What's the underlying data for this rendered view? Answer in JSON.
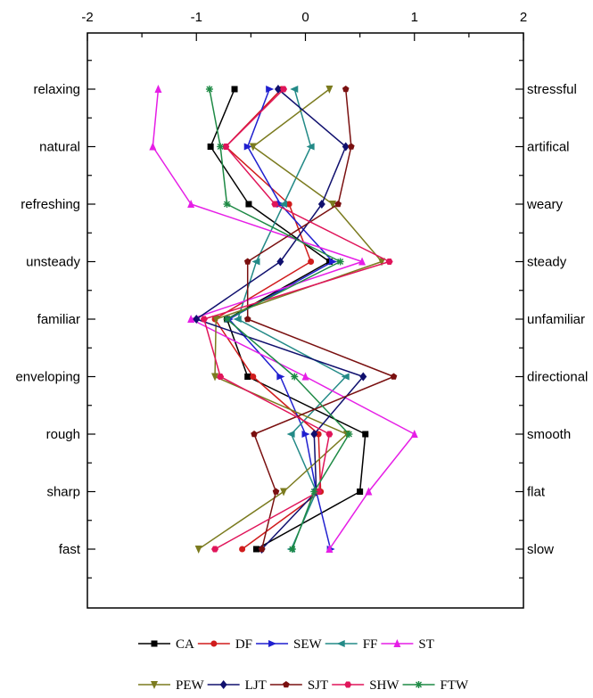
{
  "chart_data": {
    "type": "line",
    "xlim": [
      -2,
      2
    ],
    "x_ticks": [
      "-2",
      "-1",
      "0",
      "1",
      "2"
    ],
    "categories": [
      "relaxing",
      "natural",
      "refreshing",
      "unsteady",
      "familiar",
      "enveloping",
      "rough",
      "sharp",
      "fast"
    ],
    "right_labels": [
      "stressful",
      "artifical",
      "weary",
      "steady",
      "unfamiliar",
      "directional",
      "smooth",
      "flat",
      "slow"
    ],
    "grid": false,
    "legend_position": "bottom",
    "series": [
      {
        "name": "CA",
        "color": "#000000",
        "marker": "square",
        "values": [
          -0.65,
          -0.87,
          -0.52,
          0.22,
          -0.72,
          -0.53,
          0.55,
          0.5,
          -0.45
        ]
      },
      {
        "name": "DF",
        "color": "#d01c1c",
        "marker": "circle",
        "values": [
          -0.22,
          -0.73,
          -0.15,
          0.05,
          -0.83,
          -0.48,
          0.12,
          0.14,
          -0.58
        ]
      },
      {
        "name": "SEW",
        "color": "#1f1fcf",
        "marker": "triangle-right",
        "values": [
          -0.33,
          -0.53,
          -0.23,
          0.25,
          -0.7,
          -0.23,
          0.0,
          0.1,
          0.23
        ]
      },
      {
        "name": "FF",
        "color": "#238a87",
        "marker": "triangle-left",
        "values": [
          -0.1,
          0.05,
          -0.2,
          -0.45,
          -0.62,
          0.37,
          -0.13,
          0.1,
          -0.13
        ]
      },
      {
        "name": "ST",
        "color": "#e61ee6",
        "marker": "triangle-up",
        "values": [
          -1.35,
          -1.4,
          -1.05,
          0.52,
          -1.05,
          0.0,
          1.0,
          0.58,
          0.22
        ]
      },
      {
        "name": "PEW",
        "color": "#7b7b1f",
        "marker": "triangle-down",
        "values": [
          0.22,
          -0.48,
          0.25,
          0.7,
          -0.82,
          -0.83,
          0.38,
          -0.2,
          -0.98
        ]
      },
      {
        "name": "LJT",
        "color": "#10106e",
        "marker": "diamond",
        "values": [
          -0.25,
          0.37,
          0.15,
          -0.23,
          -1.0,
          0.53,
          0.08,
          0.1,
          -0.4
        ]
      },
      {
        "name": "SJT",
        "color": "#7a1010",
        "marker": "pentagon",
        "values": [
          0.37,
          0.42,
          0.3,
          -0.53,
          -0.53,
          0.81,
          -0.47,
          -0.27,
          -0.4
        ]
      },
      {
        "name": "SHW",
        "color": "#e0155a",
        "marker": "hexagon",
        "values": [
          -0.2,
          -0.73,
          -0.28,
          0.77,
          -0.93,
          -0.78,
          0.22,
          0.12,
          -0.83
        ]
      },
      {
        "name": "FTW",
        "color": "#1e8a45",
        "marker": "star",
        "values": [
          -0.88,
          -0.78,
          -0.72,
          0.32,
          -0.72,
          -0.1,
          0.4,
          0.08,
          -0.12
        ]
      }
    ]
  }
}
